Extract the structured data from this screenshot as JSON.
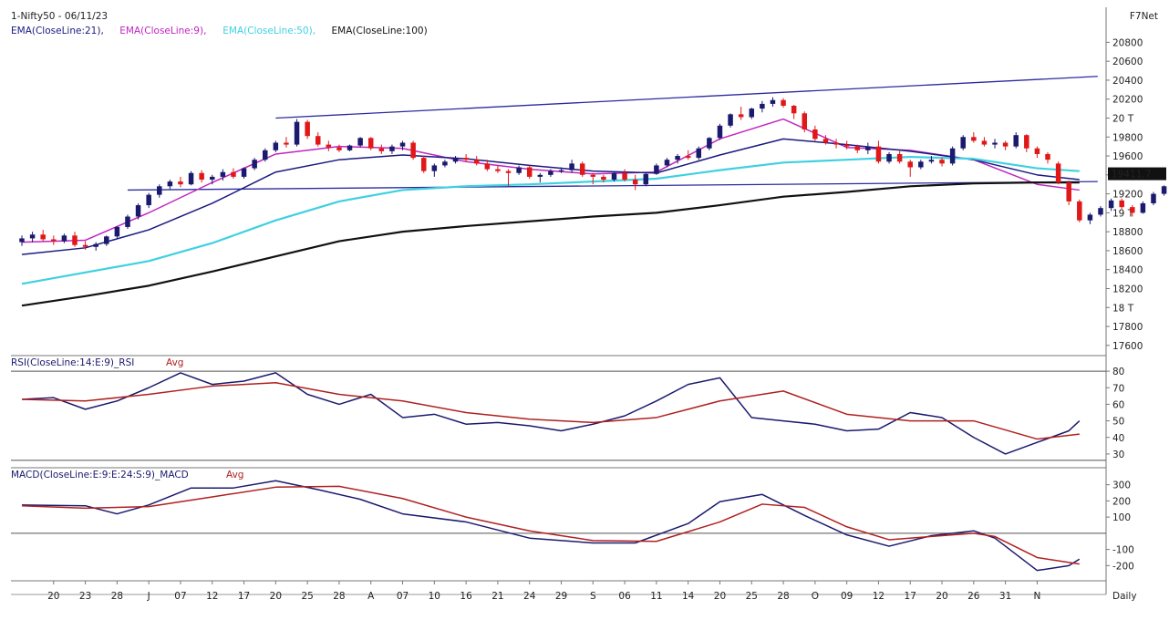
{
  "header": {
    "symbol": "1-Nifty50 - 06/11/23",
    "brand": "F7Net",
    "last_price": "19411.7"
  },
  "price_panel": {
    "indicators": [
      {
        "label": "EMA(CloseLine:21),",
        "color": "#1a1a80"
      },
      {
        "label": "EMA(CloseLine:9),",
        "color": "#c026c0"
      },
      {
        "label": "EMA(CloseLine:50),",
        "color": "#3fd0e0"
      },
      {
        "label": "EMA(CloseLine:100)",
        "color": "#111111"
      }
    ],
    "y_ticks": [
      "20800",
      "20600",
      "20400",
      "20200",
      "20 T",
      "19800",
      "19600",
      "19400",
      "19200",
      "19 T",
      "18800",
      "18600",
      "18400",
      "18200",
      "18 T",
      "17800",
      "17600"
    ],
    "y_tick_values": [
      20800,
      20600,
      20400,
      20200,
      20000,
      19800,
      19600,
      19400,
      19200,
      19000,
      18800,
      18600,
      18400,
      18200,
      18000,
      17800,
      17600
    ]
  },
  "rsi_panel": {
    "title_main": "RSI(CloseLine:14:E:9)_RSI",
    "title_avg": "Avg",
    "y_ticks": [
      "80",
      "70",
      "60",
      "50",
      "40",
      "30"
    ],
    "y_tick_values": [
      80,
      70,
      60,
      50,
      40,
      30
    ]
  },
  "macd_panel": {
    "title_main": "MACD(CloseLine:E:9:E:24:S:9)_MACD",
    "title_avg": "Avg",
    "y_ticks": [
      "300",
      "200",
      "100",
      "-100",
      "-200"
    ],
    "y_tick_values": [
      300,
      200,
      100,
      -100,
      -200
    ]
  },
  "x_axis": {
    "labels": [
      "20",
      "23",
      "28",
      "J",
      "07",
      "12",
      "17",
      "20",
      "25",
      "28",
      "A",
      "07",
      "10",
      "16",
      "21",
      "24",
      "29",
      "S",
      "06",
      "11",
      "14",
      "20",
      "25",
      "28",
      "O",
      "09",
      "12",
      "17",
      "20",
      "26",
      "31",
      "N"
    ],
    "label_index": [
      3,
      6,
      9,
      12,
      15,
      18,
      21,
      24,
      27,
      30,
      33,
      36,
      39,
      42,
      45,
      48,
      51,
      54,
      57,
      60,
      63,
      66,
      69,
      72,
      75,
      78,
      81,
      84,
      87,
      90,
      93,
      96
    ],
    "period": "Daily"
  },
  "colors": {
    "bull": "#1a1a6e",
    "bear": "#e01818",
    "neutral": "#f0e070",
    "rsi": "#1a1a6e",
    "rsi_avg": "#b02020",
    "macd": "#1a1a6e",
    "macd_avg": "#b02020",
    "trendline": "#2b2ba0"
  },
  "chart_data": [
    {
      "type": "candlestick",
      "title": "1-Nifty50 - 06/11/23",
      "x_index_range": [
        0,
        100
      ],
      "ylim": [
        17550,
        20900
      ],
      "candles": [
        [
          18690,
          18760,
          18650,
          18730
        ],
        [
          18730,
          18800,
          18690,
          18770
        ],
        [
          18770,
          18820,
          18700,
          18720
        ],
        [
          18720,
          18760,
          18660,
          18700
        ],
        [
          18700,
          18780,
          18680,
          18760
        ],
        [
          18760,
          18800,
          18640,
          18660
        ],
        [
          18660,
          18700,
          18610,
          18640
        ],
        [
          18640,
          18690,
          18600,
          18670
        ],
        [
          18670,
          18760,
          18650,
          18750
        ],
        [
          18750,
          18860,
          18730,
          18850
        ],
        [
          18850,
          18980,
          18830,
          18960
        ],
        [
          18960,
          19100,
          18930,
          19080
        ],
        [
          19080,
          19210,
          19050,
          19190
        ],
        [
          19190,
          19300,
          19160,
          19280
        ],
        [
          19280,
          19350,
          19250,
          19330
        ],
        [
          19330,
          19380,
          19270,
          19300
        ],
        [
          19300,
          19440,
          19290,
          19420
        ],
        [
          19420,
          19450,
          19320,
          19350
        ],
        [
          19350,
          19400,
          19300,
          19380
        ],
        [
          19380,
          19460,
          19340,
          19430
        ],
        [
          19430,
          19470,
          19360,
          19380
        ],
        [
          19380,
          19480,
          19360,
          19470
        ],
        [
          19470,
          19580,
          19450,
          19560
        ],
        [
          19560,
          19680,
          19540,
          19660
        ],
        [
          19660,
          19760,
          19640,
          19740
        ],
        [
          19740,
          19800,
          19690,
          19720
        ],
        [
          19720,
          19990,
          19700,
          19960
        ],
        [
          19960,
          19980,
          19780,
          19810
        ],
        [
          19810,
          19850,
          19700,
          19720
        ],
        [
          19720,
          19760,
          19650,
          19690
        ],
        [
          19690,
          19720,
          19640,
          19660
        ],
        [
          19660,
          19720,
          19650,
          19710
        ],
        [
          19710,
          19800,
          19690,
          19790
        ],
        [
          19790,
          19800,
          19660,
          19680
        ],
        [
          19680,
          19720,
          19620,
          19650
        ],
        [
          19650,
          19720,
          19620,
          19700
        ],
        [
          19700,
          19760,
          19660,
          19740
        ],
        [
          19740,
          19760,
          19560,
          19580
        ],
        [
          19580,
          19600,
          19420,
          19440
        ],
        [
          19440,
          19520,
          19380,
          19500
        ],
        [
          19500,
          19560,
          19480,
          19540
        ],
        [
          19540,
          19600,
          19520,
          19580
        ],
        [
          19580,
          19620,
          19540,
          19560
        ],
        [
          19560,
          19600,
          19500,
          19520
        ],
        [
          19520,
          19560,
          19440,
          19460
        ],
        [
          19460,
          19500,
          19420,
          19440
        ],
        [
          19440,
          19460,
          19280,
          19420
        ],
        [
          19420,
          19500,
          19400,
          19480
        ],
        [
          19480,
          19500,
          19360,
          19380
        ],
        [
          19380,
          19420,
          19320,
          19400
        ],
        [
          19400,
          19460,
          19380,
          19440
        ],
        [
          19440,
          19480,
          19420,
          19450
        ],
        [
          19450,
          19560,
          19420,
          19520
        ],
        [
          19520,
          19540,
          19380,
          19400
        ],
        [
          19400,
          19420,
          19300,
          19380
        ],
        [
          19380,
          19400,
          19320,
          19350
        ],
        [
          19350,
          19430,
          19330,
          19420
        ],
        [
          19420,
          19460,
          19330,
          19350
        ],
        [
          19350,
          19400,
          19240,
          19300
        ],
        [
          19300,
          19430,
          19280,
          19410
        ],
        [
          19410,
          19520,
          19400,
          19500
        ],
        [
          19500,
          19580,
          19480,
          19560
        ],
        [
          19560,
          19620,
          19520,
          19600
        ],
        [
          19600,
          19660,
          19560,
          19580
        ],
        [
          19580,
          19700,
          19560,
          19680
        ],
        [
          19680,
          19800,
          19660,
          19790
        ],
        [
          19790,
          19940,
          19770,
          19920
        ],
        [
          19920,
          20050,
          19900,
          20040
        ],
        [
          20040,
          20120,
          19980,
          20010
        ],
        [
          20010,
          20110,
          19990,
          20100
        ],
        [
          20100,
          20180,
          20060,
          20150
        ],
        [
          20150,
          20220,
          20120,
          20190
        ],
        [
          20190,
          20210,
          20110,
          20130
        ],
        [
          20130,
          20140,
          19990,
          20050
        ],
        [
          20050,
          20070,
          19850,
          19880
        ],
        [
          19880,
          19920,
          19760,
          19780
        ],
        [
          19780,
          19820,
          19720,
          19740
        ],
        [
          19740,
          19780,
          19680,
          19720
        ],
        [
          19720,
          19760,
          19670,
          19700
        ],
        [
          19700,
          19720,
          19630,
          19660
        ],
        [
          19660,
          19740,
          19620,
          19700
        ],
        [
          19700,
          19760,
          19520,
          19540
        ],
        [
          19540,
          19640,
          19520,
          19620
        ],
        [
          19620,
          19650,
          19520,
          19540
        ],
        [
          19540,
          19560,
          19380,
          19480
        ],
        [
          19480,
          19560,
          19460,
          19540
        ],
        [
          19540,
          19600,
          19520,
          19560
        ],
        [
          19560,
          19580,
          19490,
          19520
        ],
        [
          19520,
          19700,
          19500,
          19680
        ],
        [
          19680,
          19820,
          19660,
          19800
        ],
        [
          19800,
          19850,
          19740,
          19760
        ],
        [
          19760,
          19800,
          19700,
          19720
        ],
        [
          19720,
          19780,
          19680,
          19740
        ],
        [
          19740,
          19760,
          19660,
          19700
        ],
        [
          19700,
          19850,
          19680,
          19820
        ],
        [
          19820,
          19830,
          19640,
          19680
        ],
        [
          19680,
          19700,
          19580,
          19620
        ],
        [
          19620,
          19640,
          19520,
          19560
        ],
        [
          19520,
          19540,
          19300,
          19320
        ],
        [
          19320,
          19340,
          19080,
          19120
        ],
        [
          19120,
          19140,
          18900,
          18920
        ],
        [
          18920,
          19000,
          18880,
          18980
        ],
        [
          18980,
          19070,
          18960,
          19050
        ],
        [
          19050,
          19150,
          19020,
          19130
        ],
        [
          19130,
          19150,
          19040,
          19060
        ],
        [
          19060,
          19080,
          18960,
          19000
        ],
        [
          19000,
          19120,
          18990,
          19100
        ],
        [
          19100,
          19220,
          19080,
          19200
        ],
        [
          19200,
          19290,
          19180,
          19280
        ],
        [
          19280,
          19420,
          19260,
          19412
        ]
      ],
      "series": [
        {
          "name": "EMA(CloseLine:9)",
          "x": [
            0,
            6,
            12,
            18,
            24,
            30,
            36,
            42,
            48,
            54,
            60,
            66,
            72,
            78,
            84,
            90,
            96,
            100
          ],
          "values": [
            18690,
            18710,
            19000,
            19320,
            19620,
            19700,
            19680,
            19540,
            19460,
            19410,
            19430,
            19780,
            19990,
            19690,
            19660,
            19560,
            19300,
            19240
          ]
        },
        {
          "name": "EMA(CloseLine:21)",
          "x": [
            0,
            6,
            12,
            18,
            24,
            30,
            36,
            42,
            48,
            54,
            60,
            66,
            72,
            78,
            84,
            90,
            96,
            100
          ],
          "values": [
            18560,
            18630,
            18820,
            19100,
            19430,
            19560,
            19610,
            19570,
            19500,
            19440,
            19420,
            19610,
            19780,
            19720,
            19650,
            19560,
            19400,
            19350
          ]
        },
        {
          "name": "EMA(CloseLine:50)",
          "x": [
            0,
            6,
            12,
            18,
            24,
            30,
            36,
            42,
            48,
            54,
            60,
            66,
            72,
            78,
            84,
            90,
            96,
            100
          ],
          "values": [
            18250,
            18370,
            18490,
            18680,
            18920,
            19120,
            19240,
            19280,
            19300,
            19330,
            19360,
            19450,
            19530,
            19560,
            19590,
            19570,
            19470,
            19440
          ]
        },
        {
          "name": "EMA(CloseLine:100)",
          "x": [
            0,
            6,
            12,
            18,
            24,
            30,
            36,
            42,
            48,
            54,
            60,
            66,
            72,
            78,
            84,
            90,
            96,
            100
          ],
          "values": [
            18020,
            18120,
            18230,
            18380,
            18540,
            18700,
            18800,
            18860,
            18910,
            18960,
            19000,
            19080,
            19170,
            19220,
            19280,
            19310,
            19320,
            19320
          ]
        }
      ],
      "trendlines": [
        {
          "x": [
            24,
            100
          ],
          "values": [
            20000,
            20440
          ]
        },
        {
          "x": [
            10,
            100
          ],
          "values": [
            19240,
            19330
          ]
        }
      ]
    },
    {
      "type": "line",
      "title": "RSI(CloseLine:14:E:9)_RSI",
      "ylim": [
        25,
        85
      ],
      "series": [
        {
          "name": "RSI(CloseLine:14:E:9)_RSI",
          "x": [
            0,
            3,
            6,
            9,
            12,
            15,
            18,
            21,
            24,
            27,
            30,
            33,
            36,
            39,
            42,
            45,
            48,
            51,
            54,
            57,
            60,
            63,
            66,
            69,
            72,
            75,
            78,
            81,
            84,
            87,
            90,
            93,
            96,
            99,
            100
          ],
          "values": [
            63,
            64,
            57,
            62,
            70,
            79,
            72,
            74,
            79,
            66,
            60,
            66,
            52,
            54,
            48,
            49,
            47,
            44,
            48,
            53,
            62,
            72,
            76,
            52,
            50,
            48,
            44,
            45,
            55,
            52,
            40,
            30,
            37,
            44,
            50
          ]
        },
        {
          "name": "Avg",
          "x": [
            0,
            6,
            12,
            18,
            24,
            30,
            36,
            42,
            48,
            54,
            60,
            66,
            72,
            78,
            84,
            90,
            96,
            100
          ],
          "values": [
            63,
            62,
            66,
            71,
            73,
            66,
            62,
            55,
            51,
            49,
            52,
            62,
            68,
            54,
            50,
            50,
            39,
            42
          ]
        }
      ]
    },
    {
      "type": "line",
      "title": "MACD(CloseLine:E:9:E:24:S:9)_MACD",
      "ylim": [
        -260,
        360
      ],
      "series": [
        {
          "name": "MACD(CloseLine:E:9:E:24:S:9)_MACD",
          "x": [
            0,
            6,
            9,
            12,
            16,
            20,
            24,
            28,
            32,
            36,
            42,
            48,
            54,
            58,
            63,
            66,
            70,
            74,
            78,
            82,
            86,
            90,
            92,
            96,
            99,
            100
          ],
          "values": [
            175,
            170,
            120,
            175,
            280,
            280,
            325,
            270,
            210,
            120,
            70,
            -30,
            -60,
            -60,
            60,
            195,
            240,
            110,
            -10,
            -80,
            -15,
            15,
            -30,
            -230,
            -200,
            -160
          ]
        },
        {
          "name": "Avg",
          "x": [
            0,
            6,
            12,
            18,
            24,
            30,
            36,
            42,
            48,
            54,
            60,
            66,
            70,
            74,
            78,
            82,
            86,
            90,
            92,
            96,
            100
          ],
          "values": [
            170,
            155,
            165,
            225,
            285,
            290,
            215,
            100,
            15,
            -45,
            -50,
            70,
            180,
            160,
            40,
            -40,
            -20,
            0,
            -20,
            -150,
            -190
          ]
        }
      ]
    }
  ]
}
